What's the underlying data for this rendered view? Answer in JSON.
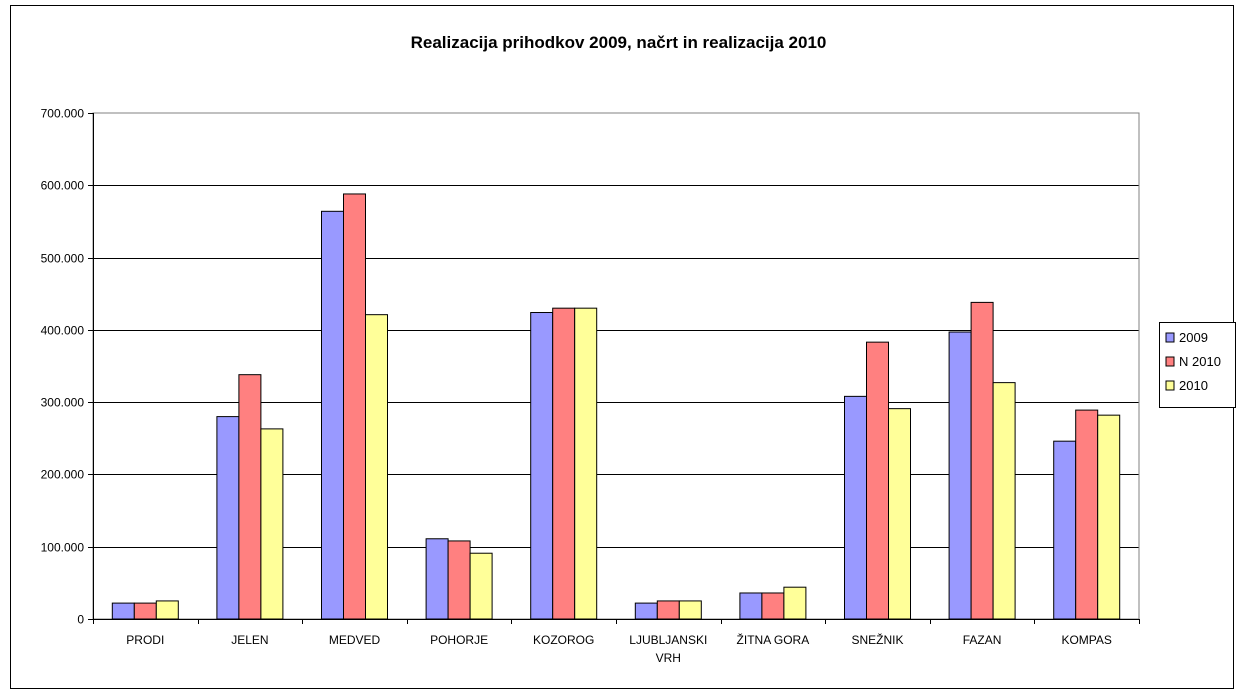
{
  "chart_data": {
    "type": "bar",
    "title": "Realizacija prihodkov 2009, načrt in realizacija 2010",
    "xlabel": "",
    "ylabel": "",
    "ylim": [
      0,
      700000
    ],
    "yticks": [
      0,
      100000,
      200000,
      300000,
      400000,
      500000,
      600000,
      700000
    ],
    "ytick_labels": [
      "0",
      "100.000",
      "200.000",
      "300.000",
      "400.000",
      "500.000",
      "600.000",
      "700.000"
    ],
    "categories": [
      [
        "PRODI"
      ],
      [
        "JELEN"
      ],
      [
        "MEDVED"
      ],
      [
        "POHORJE"
      ],
      [
        "KOZOROG"
      ],
      [
        "LJUBLJANSKI",
        "VRH"
      ],
      [
        "ŽITNA GORA"
      ],
      [
        "SNEŽNIK"
      ],
      [
        "FAZAN"
      ],
      [
        "KOMPAS"
      ]
    ],
    "series": [
      {
        "name": "2009",
        "color": "#9999ff",
        "values": [
          22000,
          280000,
          564000,
          111000,
          424000,
          22000,
          36000,
          308000,
          397000,
          246000
        ]
      },
      {
        "name": "N 2010",
        "color": "#ff8080",
        "values": [
          22000,
          338000,
          588000,
          108000,
          430000,
          25000,
          36000,
          383000,
          438000,
          289000
        ]
      },
      {
        "name": "2010",
        "color": "#ffff99",
        "values": [
          25000,
          263000,
          421000,
          91000,
          430000,
          25000,
          44000,
          291000,
          327000,
          282000
        ]
      }
    ],
    "grid": true,
    "legend_position": "right"
  }
}
